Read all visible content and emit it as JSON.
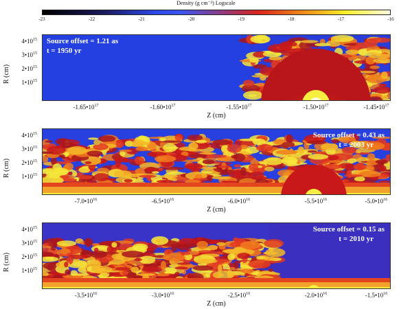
{
  "colorbar": {
    "title": "Density (g cm⁻³) Logscale",
    "ticks": [
      "-23",
      "-22",
      "-21",
      "-20",
      "-19",
      "-18",
      "-17",
      "-16"
    ]
  },
  "ylabel": "R (cm)",
  "xlabel": "Z (cm)",
  "y_ticks": [
    "4•10",
    "3•10",
    "2•10",
    "1•10"
  ],
  "y_exp": "15",
  "panels": [
    {
      "label_offset": "Source offset = 1.21 as",
      "label_time": "t = 1950 yr",
      "x_ticks": [
        "-1.65•10",
        "-1.60•10",
        "-1.55•10",
        "-1.50•10",
        "-1.45•10"
      ],
      "x_exp": "17"
    },
    {
      "label_offset": "Source offset = 0.43 as",
      "label_time": "t = 2003 yr",
      "x_ticks": [
        "-7.0•10",
        "-6.5•10",
        "-6.0•10",
        "-5.5•10",
        "-5.0•10"
      ],
      "x_exp": "16"
    },
    {
      "label_offset": "Source offset = 0.15 as",
      "label_time": "t = 2010 yr",
      "x_ticks": [
        "-3.5•10",
        "-3.0•10",
        "-2.5•10",
        "-2.0•10",
        "-1.5•10"
      ],
      "x_exp": "16"
    }
  ]
}
